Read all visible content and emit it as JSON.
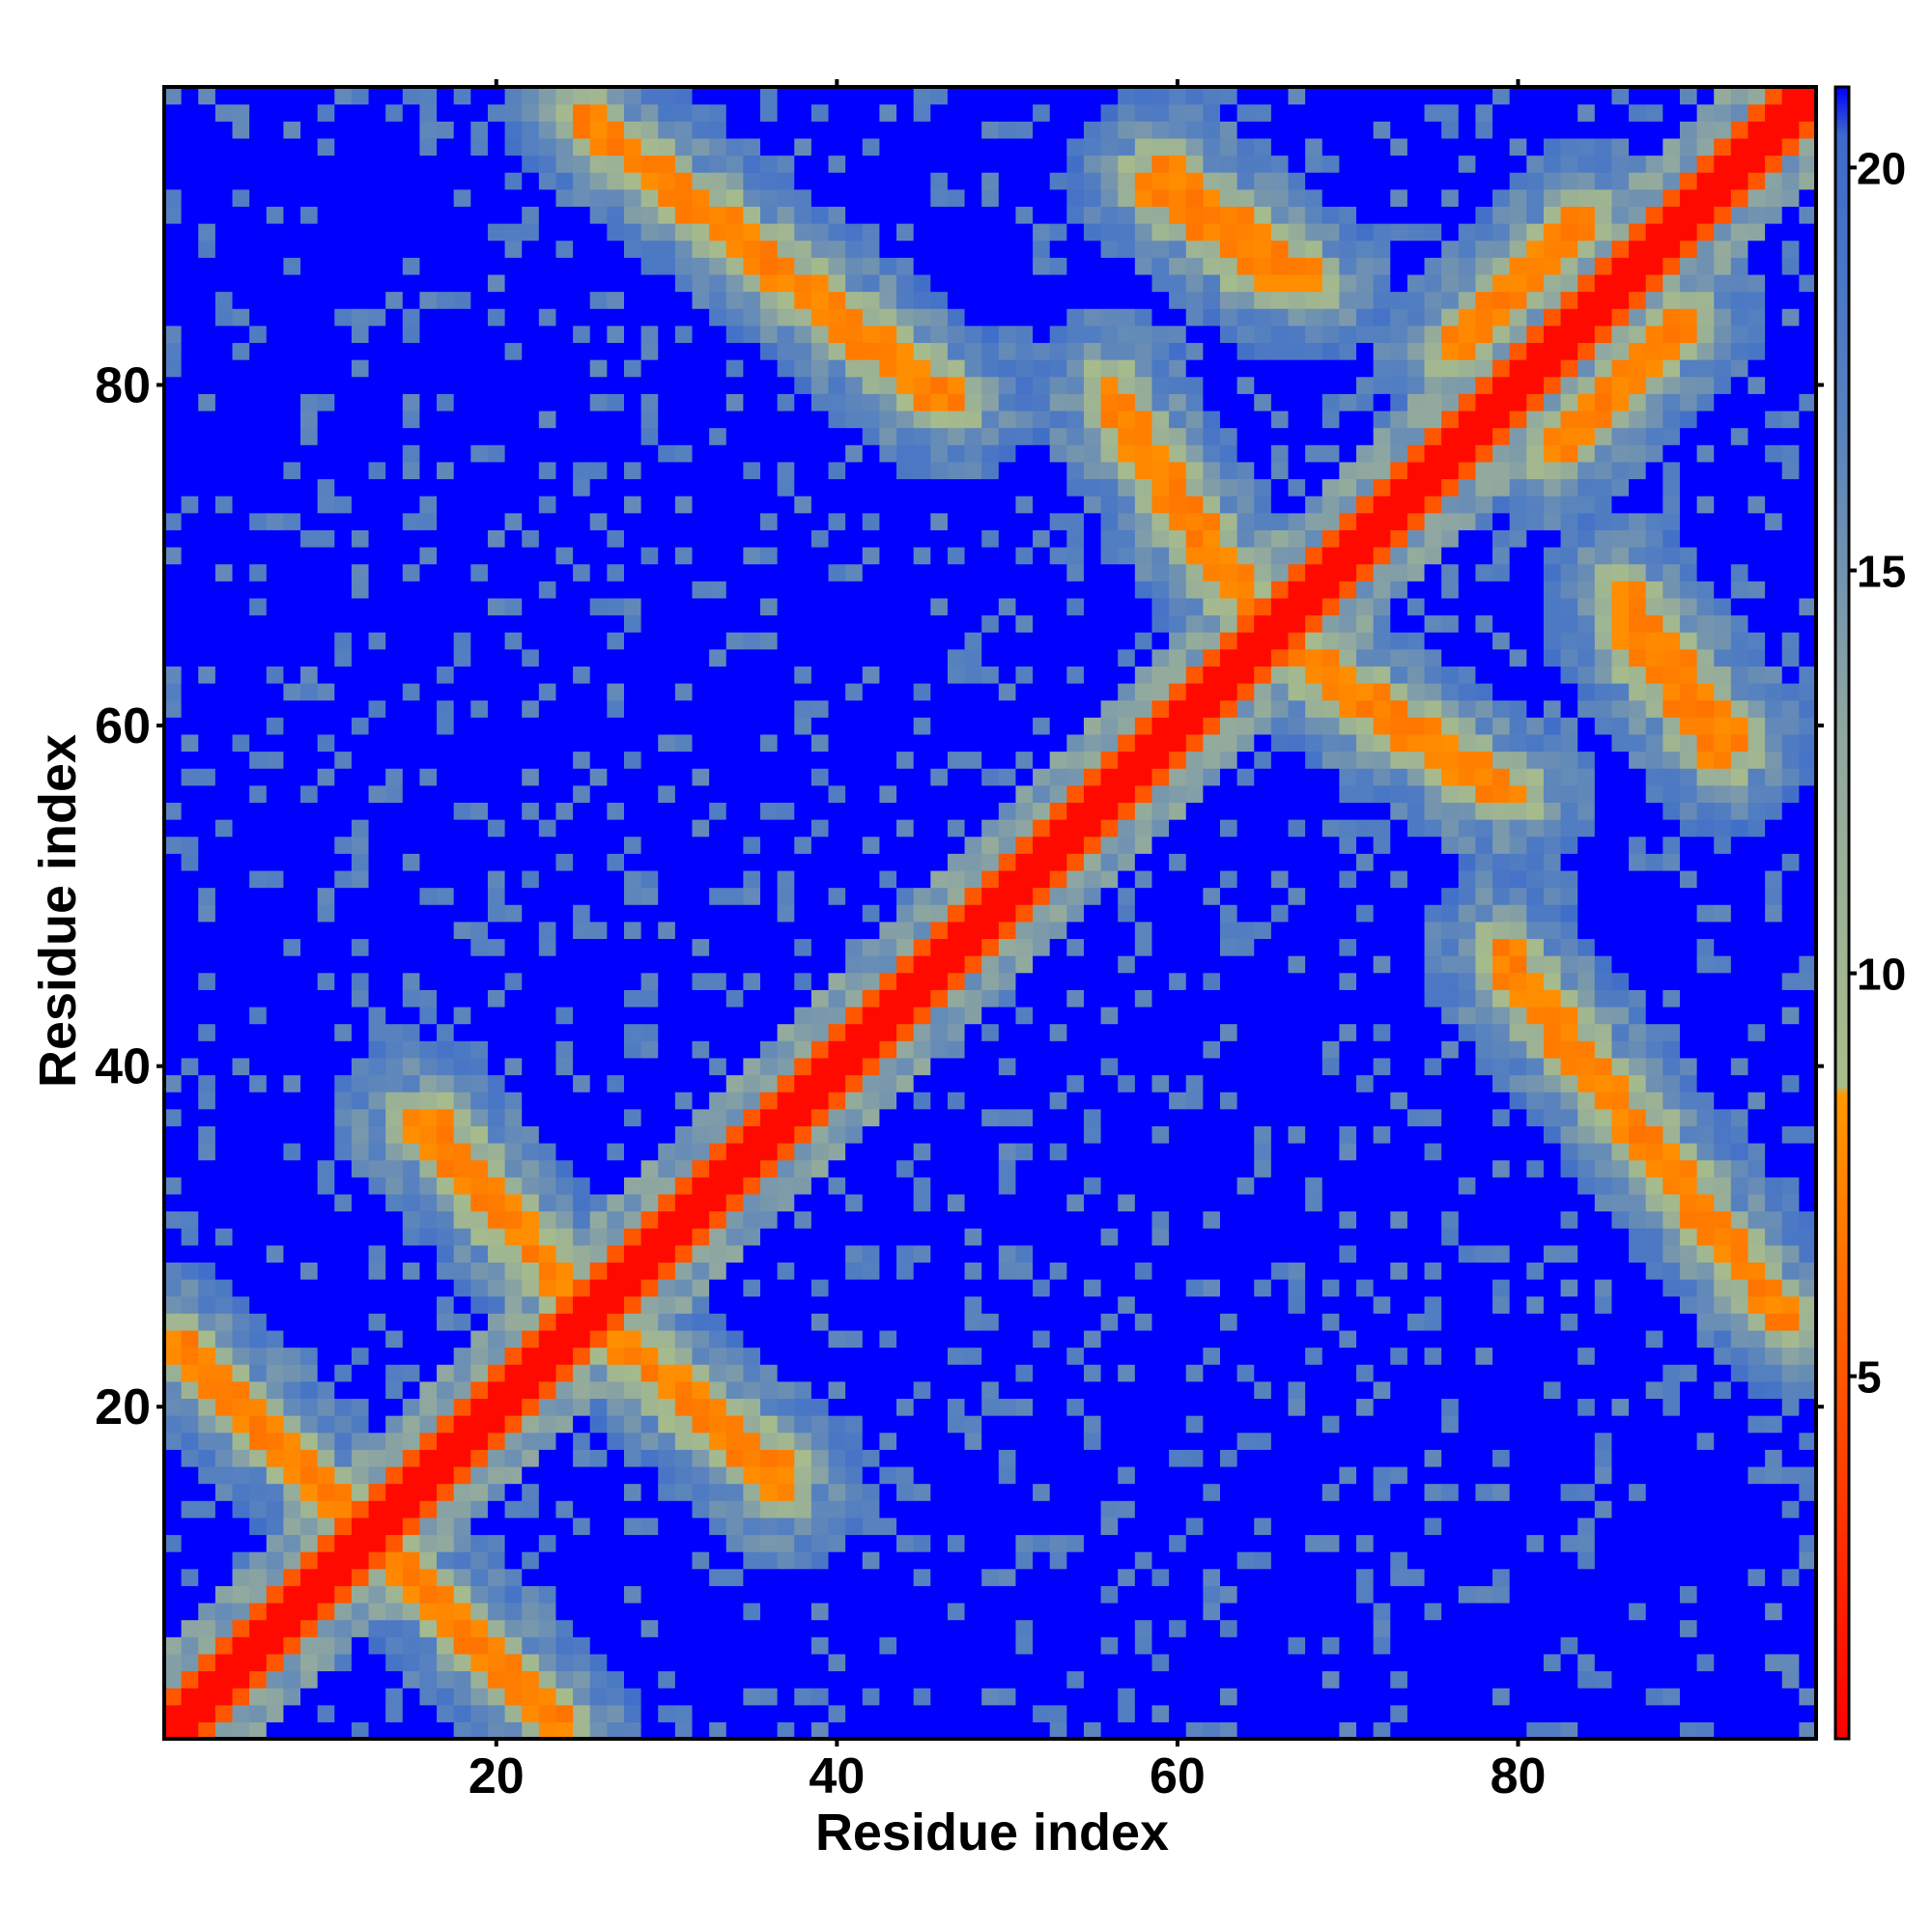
{
  "chart_data": {
    "type": "heatmap",
    "title": "",
    "xlabel": "Residue index",
    "ylabel": "Residue index",
    "xlim": [
      1,
      97
    ],
    "ylim": [
      1,
      97
    ],
    "x_ticks": [
      20,
      40,
      60,
      80
    ],
    "y_ticks": [
      20,
      40,
      60,
      80
    ],
    "colorbar": {
      "ticks": [
        5,
        10,
        15,
        20
      ],
      "range": [
        0.5,
        21
      ],
      "stops": [
        {
          "value": 0.5,
          "color": "#ff0000"
        },
        {
          "value": 8.5,
          "color": "#ff9900"
        },
        {
          "value": 8.6,
          "color": "#a9bd8a"
        },
        {
          "value": 13,
          "color": "#8fa7a0"
        },
        {
          "value": 17,
          "color": "#5580c0"
        },
        {
          "value": 20.4,
          "color": "#3c6bcb"
        },
        {
          "value": 21,
          "color": "#0000ff"
        }
      ]
    },
    "cell_value_description": "Pairwise residue distance matrix; symmetric; values capped at 21",
    "bands": [
      {
        "start": [
          1,
          24
        ],
        "end": [
          24,
          1
        ],
        "note": "antiparallel contact band"
      },
      {
        "start": [
          16,
          37
        ],
        "end": [
          27,
          24
        ],
        "note": "antiparallel contact band"
      },
      {
        "start": [
          27,
          24
        ],
        "end": [
          37,
          15
        ],
        "note": "antiparallel contact band"
      },
      {
        "start": [
          26,
          95
        ],
        "end": [
          46,
          79
        ],
        "note": "antiparallel contact band"
      },
      {
        "start": [
          58,
          92
        ],
        "end": [
          66,
          86
        ],
        "note": "antiparallel contact band"
      },
      {
        "start": [
          56,
          80
        ],
        "end": [
          65,
          66
        ],
        "note": "antiparallel contact band"
      },
      {
        "start": [
          68,
          63
        ],
        "end": [
          79,
          56
        ],
        "note": "antiparallel contact band"
      },
      {
        "start": [
          79,
          47
        ],
        "end": [
          96,
          25
        ],
        "note": "antiparallel contact band"
      },
      {
        "start": [
          86,
          68
        ],
        "end": [
          93,
          59
        ],
        "note": "antiparallel contact band"
      },
      {
        "start": [
          76,
          82
        ],
        "end": [
          84,
          90
        ],
        "note": "parallel contact band"
      }
    ]
  },
  "colors": {
    "background": "#ffffff",
    "far": "#0000ff",
    "close": "#ff0000",
    "near": "#ff9900",
    "mid": "#a9bd8a",
    "border": "#000000"
  }
}
